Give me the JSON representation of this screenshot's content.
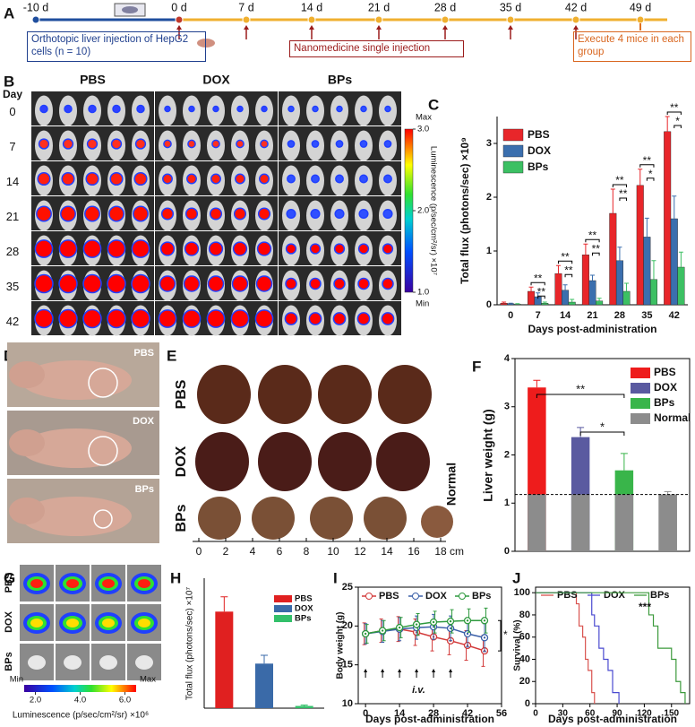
{
  "panel_labels": [
    "A",
    "B",
    "C",
    "D",
    "E",
    "F",
    "G",
    "H",
    "I",
    "J"
  ],
  "timeline": {
    "days": [
      "-10 d",
      "0 d",
      "7 d",
      "14 d",
      "21 d",
      "28 d",
      "35 d",
      "42 d",
      "49 d"
    ],
    "start_note": "Orthotopic liver injection of HepG2 cells (n = 10)",
    "injection_note": "Nanomedicine single injection",
    "end_note": "Execute 4 mice in each group"
  },
  "imaging": {
    "groups": [
      "PBS",
      "DOX",
      "BPs"
    ],
    "day_header": "Day",
    "days": [
      "0",
      "7",
      "14",
      "21",
      "28",
      "35",
      "42"
    ],
    "colorbar": {
      "max_label": "Max",
      "min_label": "Min",
      "range": [
        1,
        3
      ],
      "ticks": [
        {
          "value": 3,
          "label": "3.0"
        },
        {
          "value": 2,
          "label": "2.0"
        },
        {
          "value": 1,
          "label": "1.0"
        }
      ],
      "label": "Luminescence (p/sec/cm²/sr) ×10⁷"
    }
  },
  "mouse_photos": {
    "groups": [
      "PBS",
      "DOX",
      "BPs"
    ]
  },
  "liver_photos": {
    "groups": [
      "PBS",
      "DOX",
      "BPs"
    ],
    "normal_label": "Normal",
    "ruler_ticks": [
      0,
      2,
      4,
      6,
      8,
      10,
      12,
      14,
      16,
      18
    ],
    "ruler_unit": "cm"
  },
  "tumor_imaging": {
    "groups": [
      "PBS",
      "DOX",
      "BPs"
    ],
    "colorbar": {
      "min_label": "Min",
      "max_label": "Max",
      "range": [
        1.5,
        6.5
      ],
      "ticks": [
        {
          "value": 2,
          "label": "2.0"
        },
        {
          "value": 4,
          "label": "4.0"
        },
        {
          "value": 6,
          "label": "6.0"
        }
      ],
      "label": "Luminescence (p/sec/cm²/sr) ×10⁶"
    }
  },
  "chart_data": [
    {
      "type": "bar",
      "ylabel": "Total flux (photons/sec) ×10⁹",
      "xlabel": "Days post-administration",
      "categories": [
        "0",
        "7",
        "14",
        "21",
        "28",
        "35",
        "42"
      ],
      "ylim": [
        0,
        3.5
      ],
      "yticks": [
        0,
        1,
        2,
        3
      ],
      "series": [
        {
          "name": "PBS",
          "color": "#e8262a",
          "values": [
            0.03,
            0.25,
            0.58,
            0.93,
            1.7,
            2.22,
            3.22
          ],
          "errors": [
            0.02,
            0.08,
            0.15,
            0.2,
            0.45,
            0.3,
            0.28
          ]
        },
        {
          "name": "DOX",
          "color": "#3b6fae",
          "values": [
            0.02,
            0.15,
            0.27,
            0.45,
            0.82,
            1.26,
            1.6
          ],
          "errors": [
            0.01,
            0.07,
            0.1,
            0.1,
            0.25,
            0.35,
            0.42
          ]
        },
        {
          "name": "BPs",
          "color": "#3cc063",
          "values": [
            0.01,
            0.03,
            0.05,
            0.07,
            0.25,
            0.47,
            0.7
          ],
          "errors": [
            0.01,
            0.02,
            0.05,
            0.05,
            0.15,
            0.35,
            0.28
          ]
        }
      ],
      "significance": [
        [],
        [
          "**",
          "**"
        ],
        [
          "**",
          "**"
        ],
        [
          "**",
          "**"
        ],
        [
          "**",
          "**"
        ],
        [
          "**",
          "*"
        ],
        [
          "**",
          "*"
        ]
      ]
    },
    {
      "type": "bar",
      "ylabel": "Liver weight (g)",
      "categories": [
        "PBS",
        "DOX",
        "BPs",
        "Normal"
      ],
      "values": [
        3.4,
        2.37,
        1.68,
        1.18
      ],
      "errors": [
        0.15,
        0.2,
        0.35,
        0.06
      ],
      "colors": [
        "#ee1c1c",
        "#5a5aa0",
        "#39b54a",
        "#8c8c8c"
      ],
      "reference": 1.18,
      "ylim": [
        0,
        4
      ],
      "yticks": [
        0,
        1,
        2,
        3,
        4
      ],
      "significance": [
        "**",
        "*"
      ]
    },
    {
      "type": "bar",
      "ylabel": "Total flux (photons/sec) ×10⁷",
      "categories": [
        "PBS",
        "DOX",
        "BPs"
      ],
      "values": [
        5.2,
        2.4,
        0.12
      ],
      "errors": [
        0.8,
        0.45,
        0.05
      ],
      "colors": [
        "#e02020",
        "#3a6aa8",
        "#33c06a"
      ],
      "ylim": [
        0,
        7
      ]
    },
    {
      "type": "line",
      "ylabel": "Body weight (g)",
      "xlabel": "Days post-administration",
      "x": [
        0,
        7,
        14,
        21,
        28,
        35,
        42,
        49
      ],
      "xlim": [
        -3,
        56
      ],
      "xticks": [
        0,
        14,
        28,
        42,
        56
      ],
      "ylim": [
        10,
        25
      ],
      "yticks": [
        10,
        15,
        20,
        25
      ],
      "injection_days": [
        0,
        7,
        14,
        21,
        28,
        35
      ],
      "route_label": "i.v.",
      "significance": "*",
      "series": [
        {
          "name": "PBS",
          "color": "#d33b3b",
          "values": [
            19,
            19.4,
            19.6,
            19.2,
            18.6,
            18.1,
            17.5,
            16.8
          ],
          "errors": [
            1.4,
            1.5,
            1.6,
            1.7,
            1.8,
            1.8,
            1.9,
            2
          ]
        },
        {
          "name": "DOX",
          "color": "#3a5fa8",
          "values": [
            19,
            19.3,
            19.6,
            19.8,
            19.9,
            19.7,
            19,
            18.5
          ],
          "errors": [
            1.3,
            1.4,
            1.5,
            1.5,
            1.6,
            1.6,
            1.7,
            1.8
          ]
        },
        {
          "name": "BPs",
          "color": "#2f9a3f",
          "values": [
            19,
            19.4,
            19.8,
            20.2,
            20.5,
            20.6,
            20.7,
            20.7
          ],
          "errors": [
            1.2,
            1.3,
            1.3,
            1.4,
            1.4,
            1.5,
            1.5,
            1.6
          ]
        }
      ]
    },
    {
      "type": "step",
      "ylabel": "Survival (%)",
      "xlabel": "Days post-administration",
      "xlim": [
        0,
        170
      ],
      "xticks": [
        0,
        30,
        60,
        90,
        120,
        150
      ],
      "ylim": [
        0,
        105
      ],
      "yticks": [
        0,
        20,
        40,
        60,
        80,
        100
      ],
      "significance": "***",
      "series": [
        {
          "name": "PBS",
          "color": "#d9534f",
          "x": [
            0,
            45,
            48,
            52,
            55,
            58,
            62,
            65
          ],
          "values": [
            100,
            90,
            70,
            60,
            40,
            30,
            10,
            0
          ]
        },
        {
          "name": "DOX",
          "color": "#4a4ad0",
          "x": [
            0,
            62,
            65,
            70,
            75,
            80,
            85,
            92
          ],
          "values": [
            100,
            80,
            70,
            50,
            40,
            30,
            10,
            0
          ]
        },
        {
          "name": "BPs",
          "color": "#3c9a3c",
          "x": [
            0,
            125,
            130,
            135,
            150,
            155,
            160,
            165
          ],
          "values": [
            100,
            80,
            70,
            50,
            40,
            20,
            10,
            0
          ]
        }
      ]
    }
  ]
}
